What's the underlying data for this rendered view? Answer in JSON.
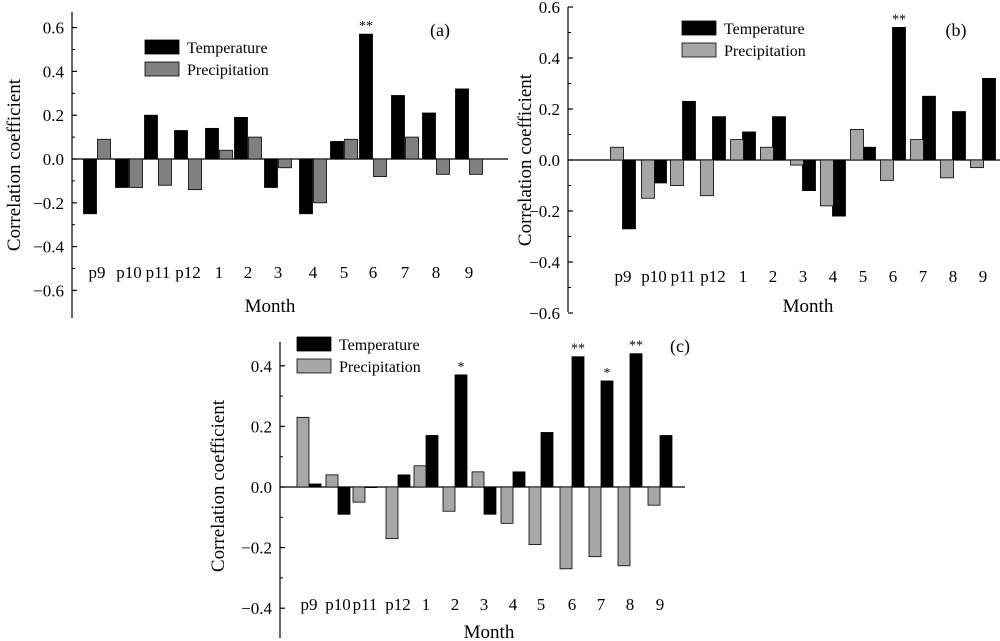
{
  "chart_data": [
    {
      "type": "bar",
      "panel_label": "(a)",
      "xlabel": "Month",
      "ylabel": "Correlation coefficient",
      "ylim": [
        -0.65,
        0.65
      ],
      "yticks": [
        0.6,
        0.4,
        0.2,
        0.0,
        -0.2,
        -0.4,
        -0.6
      ],
      "ytick_labels": [
        "0.6",
        "0.4",
        "0.2",
        "0.0",
        "−0.2",
        "−0.4",
        "−0.6"
      ],
      "categories": [
        "p9",
        "p10",
        "p11",
        "p12",
        "1",
        "2",
        "3",
        "4",
        "5",
        "6",
        "7",
        "8",
        "9"
      ],
      "legend_position": "top-left",
      "series": [
        {
          "name": "Temperature",
          "color": "#000000",
          "values": [
            -0.25,
            -0.13,
            0.2,
            0.13,
            0.14,
            0.19,
            -0.13,
            -0.25,
            0.08,
            0.57,
            0.29,
            0.21,
            0.32
          ]
        },
        {
          "name": "Precipitation",
          "color": "#808080",
          "values": [
            0.09,
            -0.13,
            -0.12,
            -0.14,
            0.04,
            0.1,
            -0.04,
            -0.2,
            0.09,
            -0.08,
            0.1,
            -0.07,
            -0.07
          ]
        }
      ],
      "significance": [
        {
          "category": "6",
          "series": "Temperature",
          "mark": "**"
        }
      ]
    },
    {
      "type": "bar",
      "panel_label": "(b)",
      "xlabel": "Month",
      "ylabel": "Correlation coefficient",
      "ylim": [
        -0.6,
        0.6
      ],
      "yticks": [
        0.6,
        0.4,
        0.2,
        0.0,
        -0.2,
        -0.4,
        -0.6
      ],
      "ytick_labels": [
        "0.6",
        "0.4",
        "0.2",
        "0.0",
        "−0.2",
        "−0.4",
        "−0.6"
      ],
      "categories": [
        "p9",
        "p10",
        "p11",
        "p12",
        "1",
        "2",
        "3",
        "4",
        "5",
        "6",
        "7",
        "8",
        "9"
      ],
      "legend_position": "top-left",
      "series": [
        {
          "name": "Temperature",
          "color": "#000000",
          "values": [
            -0.27,
            -0.09,
            0.23,
            0.17,
            0.11,
            0.17,
            -0.12,
            -0.22,
            0.05,
            0.52,
            0.25,
            0.19,
            0.32
          ]
        },
        {
          "name": "Precipitation",
          "color": "#a6a6a6",
          "values": [
            0.05,
            -0.15,
            -0.1,
            -0.14,
            0.08,
            0.05,
            -0.02,
            -0.18,
            0.12,
            -0.08,
            0.08,
            -0.07,
            -0.03
          ]
        }
      ],
      "series_order": [
        "Precipitation",
        "Temperature"
      ],
      "significance": [
        {
          "category": "6",
          "series": "Temperature",
          "mark": "**"
        }
      ]
    },
    {
      "type": "bar",
      "panel_label": "(c)",
      "xlabel": "Month",
      "ylabel": "Correlation coefficient",
      "ylim": [
        -0.48,
        0.5
      ],
      "yticks": [
        0.4,
        0.2,
        0.0,
        -0.2,
        -0.4
      ],
      "ytick_labels": [
        "0.4",
        "0.2",
        "0.0",
        "−0.2",
        "−0.4"
      ],
      "categories": [
        "p9",
        "p10",
        "p11",
        "p12",
        "1",
        "2",
        "3",
        "4",
        "5",
        "6",
        "7",
        "8",
        "9"
      ],
      "legend_position": "top-left",
      "series": [
        {
          "name": "Temperature",
          "color": "#000000",
          "values": [
            0.01,
            -0.09,
            0.0,
            0.04,
            0.17,
            0.37,
            -0.09,
            0.05,
            0.18,
            0.43,
            0.35,
            0.44,
            0.17
          ]
        },
        {
          "name": "Precipitation",
          "color": "#a6a6a6",
          "values": [
            0.23,
            0.04,
            -0.05,
            -0.17,
            0.07,
            -0.08,
            0.05,
            -0.12,
            -0.19,
            -0.27,
            -0.23,
            -0.26,
            -0.06
          ]
        }
      ],
      "series_order": [
        "Precipitation",
        "Temperature"
      ],
      "significance": [
        {
          "category": "2",
          "series": "Temperature",
          "mark": "*"
        },
        {
          "category": "6",
          "series": "Temperature",
          "mark": "**"
        },
        {
          "category": "7",
          "series": "Temperature",
          "mark": "*"
        },
        {
          "category": "8",
          "series": "Temperature",
          "mark": "**"
        }
      ]
    }
  ]
}
